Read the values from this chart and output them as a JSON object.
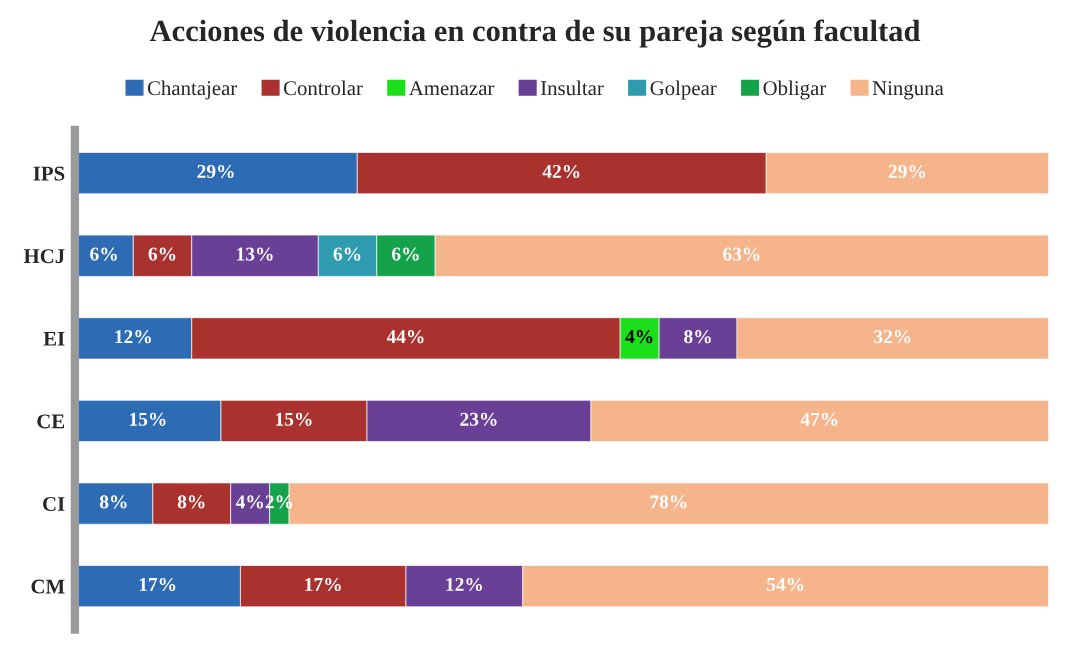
{
  "chart_data": {
    "type": "bar",
    "title": "Acciones de violencia en contra de su pareja según facultad",
    "orientation": "horizontal",
    "stacked": true,
    "legend": "top",
    "tick_labels": "y",
    "categories": [
      "IPS",
      "HCJ",
      "EI",
      "CE",
      "CI",
      "CM"
    ],
    "series": [
      {
        "name": "Chantajear",
        "color": "#2e6bb5",
        "values": [
          29,
          6,
          12,
          15,
          8,
          17
        ],
        "value_labels": [
          "29%",
          "6%",
          "12%",
          "15%",
          "8%",
          "17%"
        ]
      },
      {
        "name": "Controlar",
        "color": "#a9322e",
        "values": [
          42,
          6,
          44,
          15,
          8,
          17
        ],
        "value_labels": [
          "42%",
          "6%",
          "44%",
          "15%",
          "8%",
          "17%"
        ]
      },
      {
        "name": "Amenazar",
        "color": "#1adf1a",
        "values": [
          null,
          null,
          4,
          null,
          null,
          null
        ],
        "value_labels": [
          null,
          null,
          "4%",
          null,
          null,
          null
        ]
      },
      {
        "name": "Insultar",
        "color": "#6a3f96",
        "values": [
          null,
          13,
          8,
          23,
          4,
          12
        ],
        "value_labels": [
          null,
          "13%",
          "8%",
          "23%",
          "4%",
          "12%"
        ]
      },
      {
        "name": "Golpear",
        "color": "#2f9bb0",
        "values": [
          null,
          6,
          null,
          null,
          null,
          null
        ],
        "value_labels": [
          null,
          "6%",
          null,
          null,
          null,
          null
        ]
      },
      {
        "name": "Obligar",
        "color": "#14a34a",
        "values": [
          null,
          6,
          null,
          null,
          2,
          null
        ],
        "value_labels": [
          null,
          "6%",
          null,
          null,
          "2%",
          null
        ]
      },
      {
        "name": "Ninguna",
        "color": "#f6b48a",
        "values": [
          29,
          63,
          32,
          47,
          78,
          54
        ],
        "value_labels": [
          "29%",
          "63%",
          "32%",
          "47%",
          "78%",
          "54%"
        ]
      }
    ]
  }
}
